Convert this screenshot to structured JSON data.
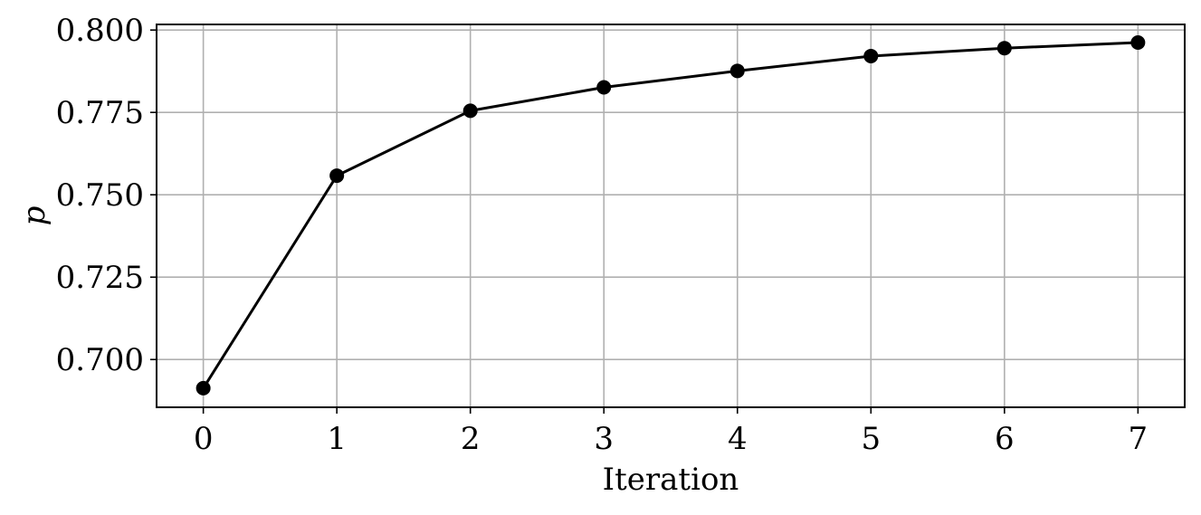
{
  "chart_data": {
    "type": "line",
    "title": "",
    "xlabel": "Iteration",
    "ylabel": "p",
    "x": [
      0,
      1,
      2,
      3,
      4,
      5,
      6,
      7
    ],
    "series": [
      {
        "values": [
          0.6913,
          0.7558,
          0.7755,
          0.7826,
          0.7876,
          0.7921,
          0.7945,
          0.7962
        ],
        "color": "#000000",
        "marker": "circle"
      }
    ],
    "xticks": [
      "0",
      "1",
      "2",
      "3",
      "4",
      "5",
      "6",
      "7"
    ],
    "yticks": [
      "0.700",
      "0.725",
      "0.750",
      "0.775",
      "0.800"
    ],
    "xlim": [
      -0.35,
      7.35
    ],
    "ylim": [
      0.6855,
      0.8017
    ],
    "grid": true,
    "grid_color": "#b0b0b0"
  }
}
